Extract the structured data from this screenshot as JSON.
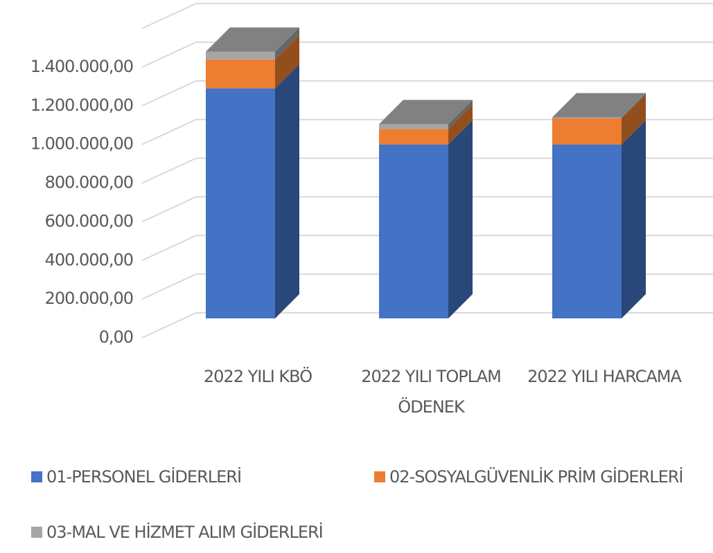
{
  "chart_data": {
    "type": "bar",
    "stacked": true,
    "three_d": true,
    "categories": [
      "2022 YILI KBÖ",
      "2022 YILI TOPLAM ÖDENEK",
      "2022 YILI HARCAMA"
    ],
    "series": [
      {
        "name": "01-PERSONEL GİDERLERİ",
        "color": "#4472c4",
        "values": [
          1190000,
          900000,
          900000
        ]
      },
      {
        "name": "02-SOSYALGÜVENLİK PRİM GİDERLERİ",
        "color": "#ed7d31",
        "values": [
          150000,
          80000,
          135000
        ]
      },
      {
        "name": "03-MAL VE HİZMET ALIM GİDERLERİ",
        "color": "#a5a5a5",
        "values": [
          40000,
          25000,
          5000
        ]
      }
    ],
    "ylim": [
      0,
      1600000
    ],
    "yticks": [
      {
        "value": 0,
        "label": "0,00"
      },
      {
        "value": 200000,
        "label": "200.000,00"
      },
      {
        "value": 400000,
        "label": "400.000,00"
      },
      {
        "value": 600000,
        "label": "600.000,00"
      },
      {
        "value": 800000,
        "label": "800.000,00"
      },
      {
        "value": 1000000,
        "label": "1.000.000,00"
      },
      {
        "value": 1200000,
        "label": "1.200.000,00"
      },
      {
        "value": 1400000,
        "label": "1.400.000,00"
      }
    ],
    "grid": true,
    "legend": "bottom"
  }
}
